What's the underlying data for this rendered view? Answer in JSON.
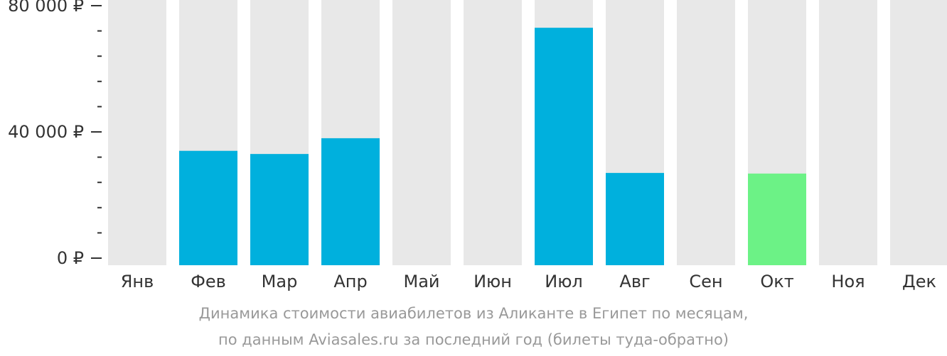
{
  "chart_data": {
    "type": "bar",
    "categories": [
      "Янв",
      "Фев",
      "Мар",
      "Апр",
      "Май",
      "Июн",
      "Июл",
      "Авг",
      "Сен",
      "Окт",
      "Ноя",
      "Дек"
    ],
    "values": [
      null,
      34000,
      33000,
      38000,
      null,
      null,
      73000,
      27000,
      null,
      26800,
      null,
      null
    ],
    "highlight": {
      "category": "Окт",
      "color": "#6cf286"
    },
    "ylim": [
      0,
      80000
    ],
    "yticks": [
      0,
      40000,
      80000
    ],
    "ytick_labels": [
      "0 ₽",
      "40 000 ₽",
      "80 000 ₽"
    ],
    "grid": false,
    "colors": {
      "bar": "#00b0dd",
      "highlight": "#6cf286",
      "background_column": "#e8e8e8",
      "axis_text": "#333333",
      "caption_text": "#999999"
    }
  },
  "caption": {
    "line1": "Динамика стоимости авиабилетов из Аликанте в Египет по месяцам,",
    "line2": "по данным Aviasales.ru за последний год (билеты туда-обратно)"
  }
}
